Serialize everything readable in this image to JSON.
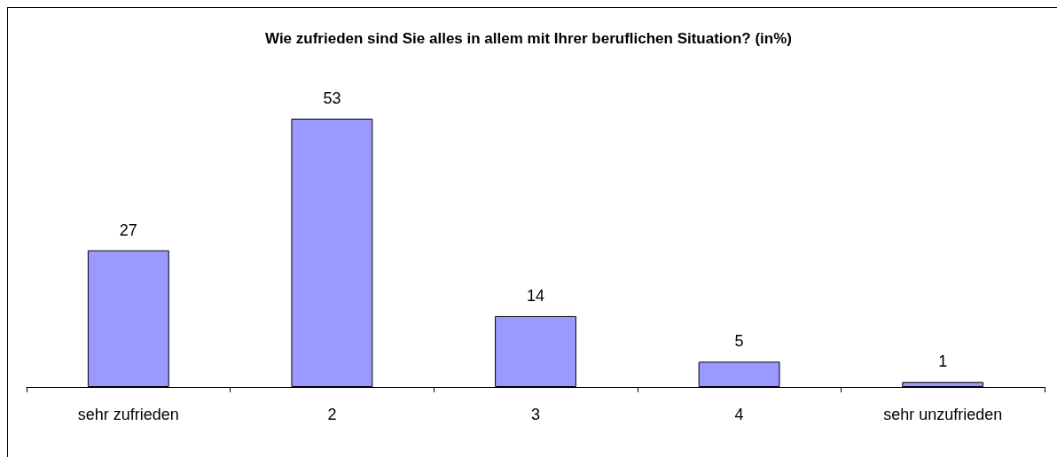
{
  "chart_data": {
    "type": "bar",
    "title": "Wie zufrieden sind Sie alles in allem mit Ihrer beruflichen Situation? (in%)",
    "categories": [
      "sehr zufrieden",
      "2",
      "3",
      "4",
      "sehr unzufrieden"
    ],
    "values": [
      27,
      53,
      14,
      5,
      1
    ],
    "color": "#9999ff",
    "data_labels": true
  }
}
